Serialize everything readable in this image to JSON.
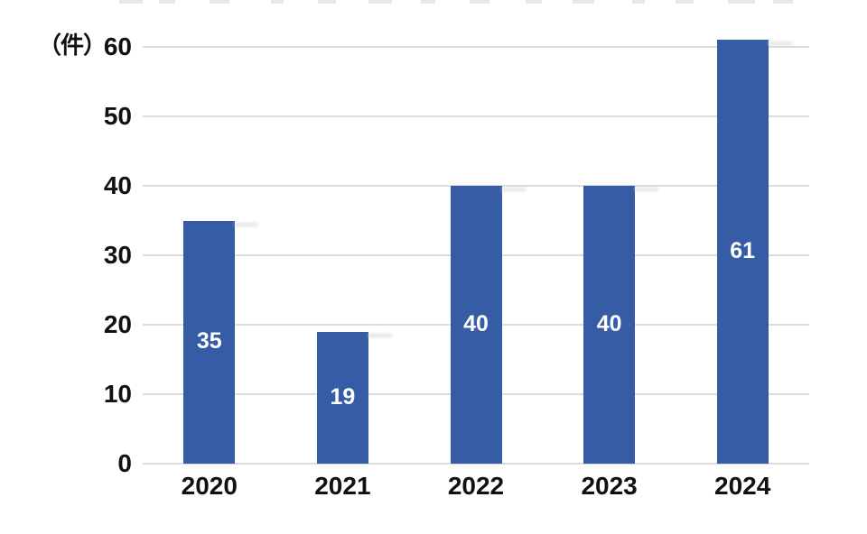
{
  "chart_data": {
    "type": "bar",
    "title": "",
    "unit_label": "（件）",
    "categories": [
      "2020",
      "2021",
      "2022",
      "2023",
      "2024"
    ],
    "values": [
      35,
      19,
      40,
      40,
      61
    ],
    "data_label_position": "center",
    "yticks": [
      0,
      10,
      20,
      30,
      40,
      50,
      60
    ],
    "ylim": [
      0,
      60
    ],
    "xlabel": "",
    "ylabel": "（件）",
    "grid": true,
    "legend_position": "none",
    "colors": {
      "bar": "#365CA6",
      "bar_label": "#FFFFFF",
      "gridline": "#DCDCDC",
      "axis_text": "#111111"
    }
  }
}
